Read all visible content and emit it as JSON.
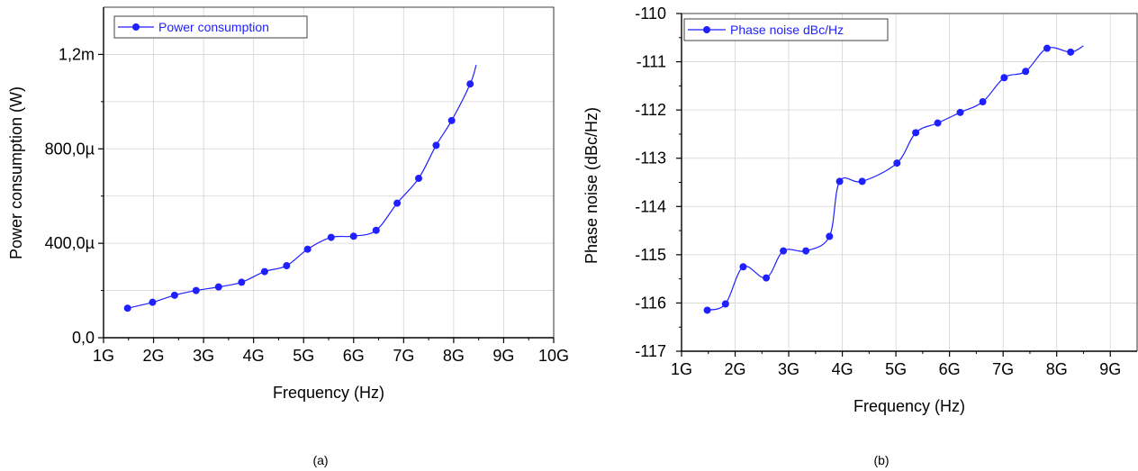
{
  "chart_data": [
    {
      "type": "line",
      "panel_caption": "(a)",
      "xlabel": "Frequency (Hz)",
      "ylabel": "Power consumption (W)",
      "xlim": [
        1,
        10
      ],
      "ylim": [
        0,
        1.4
      ],
      "x_ticks": [
        1,
        2,
        3,
        4,
        5,
        6,
        7,
        8,
        9,
        10
      ],
      "x_tick_labels": [
        "1G",
        "2G",
        "3G",
        "4G",
        "5G",
        "6G",
        "7G",
        "8G",
        "9G",
        "10G"
      ],
      "y_ticks": [
        0,
        0.4,
        0.8,
        1.2
      ],
      "y_tick_labels": [
        "0,0",
        "400,0µ",
        "800,0µ",
        "1,2m"
      ],
      "y_grid_ticks": [
        0.2,
        0.4,
        0.6,
        0.8,
        1.0,
        1.2
      ],
      "grid": true,
      "legend_position": "top-left",
      "color": "#1f1fff",
      "series": [
        {
          "name": "Power consumption",
          "x": [
            1.48,
            1.98,
            2.42,
            2.85,
            3.3,
            3.76,
            4.22,
            4.66,
            5.08,
            5.55,
            6.0,
            6.45,
            6.87,
            7.3,
            7.65,
            7.96,
            8.33
          ],
          "y": [
            0.125,
            0.15,
            0.18,
            0.2,
            0.215,
            0.235,
            0.28,
            0.305,
            0.375,
            0.425,
            0.43,
            0.455,
            0.57,
            0.675,
            0.815,
            0.92,
            1.075
          ],
          "curve_end": [
            8.45,
            1.155
          ]
        }
      ]
    },
    {
      "type": "line",
      "panel_caption": "(b)",
      "xlabel": "Frequency (Hz)",
      "ylabel": "Phase noise (dBc/Hz)",
      "xlim": [
        1,
        9.5
      ],
      "ylim": [
        -117,
        -110
      ],
      "x_ticks": [
        1,
        2,
        3,
        4,
        5,
        6,
        7,
        8,
        9
      ],
      "x_tick_labels": [
        "1G",
        "2G",
        "3G",
        "4G",
        "5G",
        "6G",
        "7G",
        "8G",
        "9G"
      ],
      "y_ticks": [
        -117,
        -116,
        -115,
        -114,
        -113,
        -112,
        -111,
        -110
      ],
      "y_tick_labels": [
        "-117",
        "-116",
        "-115",
        "-114",
        "-113",
        "-112",
        "-111",
        "-110"
      ],
      "y_grid_ticks": [
        -116,
        -115,
        -114,
        -113,
        -112,
        -111
      ],
      "grid": true,
      "legend_position": "top-left",
      "color": "#1f1fff",
      "series": [
        {
          "name": "Phase noise dBc/Hz",
          "x": [
            1.48,
            1.82,
            2.15,
            2.58,
            2.9,
            3.32,
            3.76,
            3.95,
            4.37,
            5.02,
            5.37,
            5.78,
            6.2,
            6.62,
            7.02,
            7.42,
            7.82,
            8.26
          ],
          "y": [
            -116.15,
            -116.02,
            -115.25,
            -115.48,
            -114.92,
            -114.92,
            -114.62,
            -113.48,
            -113.48,
            -113.1,
            -112.47,
            -112.27,
            -112.05,
            -111.83,
            -111.33,
            -111.2,
            -110.72,
            -110.8
          ],
          "curve_end": [
            8.5,
            -110.67
          ]
        }
      ]
    }
  ]
}
